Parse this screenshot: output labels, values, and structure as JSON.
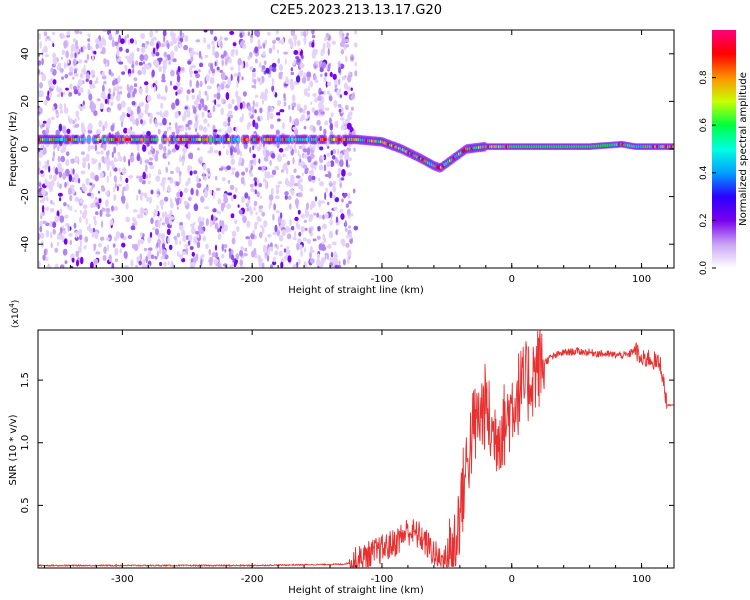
{
  "title": "C2E5.2023.213.13.17.G20",
  "chart_data": [
    {
      "type": "heatmap",
      "xlabel": "Height of straight line (km)",
      "ylabel": "Frequency (Hz)",
      "xlim": [
        -365,
        125
      ],
      "ylim": [
        -50,
        50
      ],
      "x_ticks": [
        -300,
        -200,
        -100,
        0,
        100
      ],
      "y_ticks": [
        -40,
        -20,
        0,
        20,
        40
      ],
      "colorbar": {
        "label": "Normalized spectral amplitude",
        "range": [
          0,
          1
        ],
        "ticks": [
          "0.0",
          "0.2",
          "0.4",
          "0.6",
          "0.8"
        ],
        "colors": [
          "#ffffff",
          "#c9a3f5",
          "#7a00ee",
          "#2a00ff",
          "#00a0ff",
          "#00ffe0",
          "#00ff40",
          "#c8ff00",
          "#ff9000",
          "#ff0000",
          "#ff0080"
        ]
      },
      "scatter_region_x": [
        -365,
        -120
      ],
      "band_trace": {
        "x": [
          -365,
          -140,
          -120,
          -100,
          -85,
          -70,
          -60,
          -55,
          -45,
          -35,
          -20,
          0,
          20,
          60,
          85,
          95,
          125
        ],
        "y": [
          4,
          4,
          4,
          3,
          0,
          -4,
          -7,
          -8,
          -4,
          0,
          1,
          1,
          1,
          1,
          2,
          1,
          1
        ]
      }
    },
    {
      "type": "line",
      "xlabel": "Height of straight line (km)",
      "ylabel": "SNR (10 * v/v)",
      "y_multiplier": "(x10",
      "y_multiplier_exp": "4",
      "y_multiplier_close": ")",
      "xlim": [
        -365,
        125
      ],
      "ylim": [
        0,
        1.9
      ],
      "x_ticks": [
        -300,
        -200,
        -100,
        0,
        100
      ],
      "y_ticks": [
        "0.5",
        "1.0",
        "1.5"
      ],
      "line_color": "#e83030",
      "series": [
        {
          "x": [
            -365,
            -300,
            -200,
            -130,
            -120,
            -110,
            -100,
            -90,
            -80,
            -70,
            -60,
            -55,
            -50,
            -45,
            -40,
            -35,
            -30,
            -25,
            -20,
            -15,
            -10,
            -5,
            0,
            5,
            10,
            15,
            20,
            30,
            40,
            50,
            60,
            70,
            80,
            90,
            95,
            100,
            105,
            110,
            115,
            118,
            120,
            125
          ],
          "y": [
            0.02,
            0.02,
            0.02,
            0.03,
            0.05,
            0.1,
            0.15,
            0.2,
            0.3,
            0.25,
            0.12,
            0.05,
            0.08,
            0.15,
            0.45,
            0.8,
            1.1,
            1.2,
            1.3,
            1.05,
            1.1,
            1.15,
            1.3,
            1.4,
            1.45,
            1.52,
            1.6,
            1.68,
            1.72,
            1.73,
            1.72,
            1.71,
            1.7,
            1.7,
            1.75,
            1.65,
            1.68,
            1.65,
            1.62,
            1.4,
            1.3,
            1.3
          ]
        }
      ]
    }
  ]
}
